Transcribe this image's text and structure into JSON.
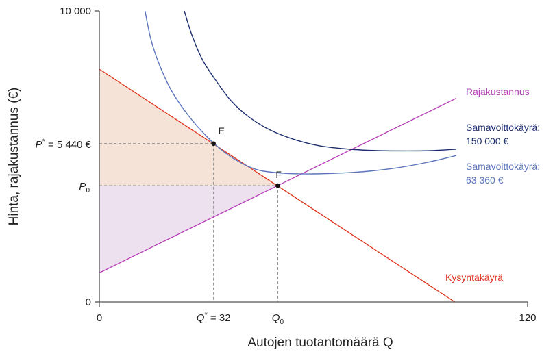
{
  "chart_data": {
    "type": "line",
    "xlabel": "Autojen tuotantomäärä Q",
    "ylabel": "Hinta, rajakustannus (€)",
    "xlim": [
      0,
      120
    ],
    "ylim": [
      0,
      10000
    ],
    "x_ticks": [
      "0",
      "120"
    ],
    "y_ticks": [
      "0",
      "10 000"
    ],
    "grid": false,
    "series": [
      {
        "name": "Kysyntäkäyrä",
        "color": "#e0341c",
        "points": [
          [
            0,
            8000
          ],
          [
            99.6,
            0
          ]
        ]
      },
      {
        "name": "Rajakustannus",
        "color": "#b63fb6",
        "points": [
          [
            0,
            1000
          ],
          [
            100,
            7000
          ]
        ]
      },
      {
        "name": [
          "Samavoittokäyrä:",
          "150 000 €"
        ],
        "color": "#1c2e6e",
        "points": [
          [
            23.8,
            10000
          ],
          [
            26,
            9150
          ],
          [
            29,
            8300
          ],
          [
            33,
            7550
          ],
          [
            37,
            6900
          ],
          [
            42,
            6350
          ],
          [
            48,
            5900
          ],
          [
            55,
            5570
          ],
          [
            62,
            5360
          ],
          [
            70,
            5250
          ],
          [
            78,
            5200
          ],
          [
            86,
            5190
          ],
          [
            93,
            5200
          ],
          [
            100,
            5250
          ]
        ]
      },
      {
        "name": [
          "Samavoittokäyrä:",
          "63 360 €"
        ],
        "color": "#5b74bb",
        "points": [
          [
            12.8,
            10000
          ],
          [
            14.5,
            9000
          ],
          [
            17,
            8100
          ],
          [
            20.5,
            7200
          ],
          [
            25,
            6400
          ],
          [
            30,
            5700
          ],
          [
            35,
            5150
          ],
          [
            40,
            4760
          ],
          [
            45,
            4520
          ],
          [
            52,
            4420
          ],
          [
            60,
            4400
          ],
          [
            68,
            4430
          ],
          [
            76,
            4500
          ],
          [
            84,
            4620
          ],
          [
            92,
            4800
          ],
          [
            100,
            5030
          ]
        ]
      }
    ],
    "areas": [
      {
        "id": "consumer-surplus",
        "color": "#f5e3d8",
        "points": [
          [
            0,
            8000
          ],
          [
            32,
            5440
          ],
          [
            50,
            4000
          ],
          [
            0,
            4000
          ]
        ]
      },
      {
        "id": "producer-surplus",
        "color": "#ede1ef",
        "points": [
          [
            0,
            4000
          ],
          [
            50,
            4000
          ],
          [
            0,
            1000
          ]
        ]
      }
    ],
    "points": [
      {
        "label": "E",
        "x": 32,
        "y": 5440
      },
      {
        "label": "F",
        "x": 50,
        "y": 4000
      }
    ],
    "annotations": {
      "p_star": {
        "label": "P",
        "sup": "*",
        "suffix": " = 5 440 €",
        "value": 5440
      },
      "p0": {
        "label": "P",
        "sub": "0",
        "value": 4000
      },
      "q_star": {
        "label": "Q",
        "sup": "*",
        "suffix": " = 32",
        "value": 32
      },
      "q0": {
        "label": "Q",
        "sub": "0",
        "value": 50
      }
    }
  }
}
